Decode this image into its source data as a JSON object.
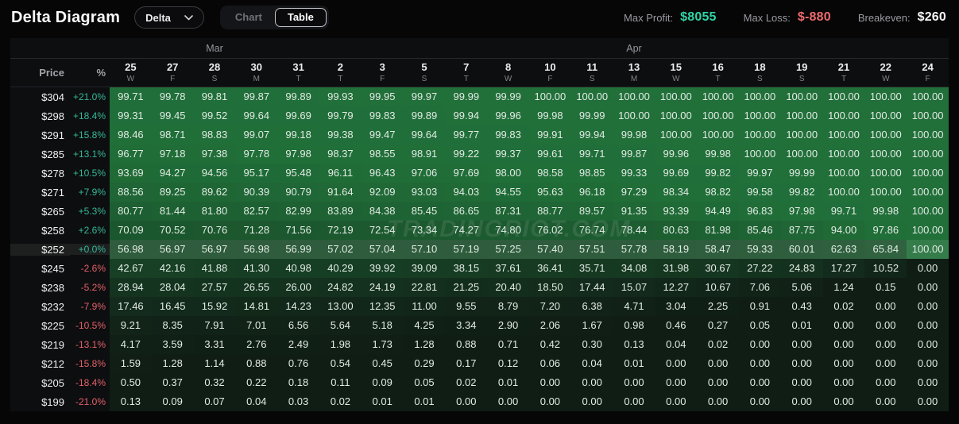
{
  "header": {
    "title": "Delta Diagram",
    "dropdown_value": "Delta",
    "tabs": [
      {
        "label": "Chart",
        "active": false
      },
      {
        "label": "Table",
        "active": true
      }
    ]
  },
  "stats": {
    "max_profit_label": "Max Profit:",
    "max_profit_value": "$8055",
    "max_loss_label": "Max Loss:",
    "max_loss_value": "$-880",
    "breakeven_label": "Breakeven:",
    "breakeven_value": "$260",
    "profit_color": "#2fd3a5",
    "loss_color": "#ee6a6c"
  },
  "watermark": "TRADINGRIOT.COM",
  "colors": {
    "cell_green_base": "rgb(44,164,80)",
    "positive_pct": "#35b899",
    "negative_pct": "#e2606b"
  },
  "table": {
    "price_header": "Price",
    "pct_header": "%",
    "months": [
      {
        "label": "Mar",
        "span": 5
      },
      {
        "label": "Apr",
        "span": 15
      }
    ],
    "columns": [
      {
        "day": "25",
        "dow": "W"
      },
      {
        "day": "27",
        "dow": "F"
      },
      {
        "day": "28",
        "dow": "S"
      },
      {
        "day": "30",
        "dow": "M"
      },
      {
        "day": "31",
        "dow": "T"
      },
      {
        "day": "2",
        "dow": "T"
      },
      {
        "day": "3",
        "dow": "F"
      },
      {
        "day": "5",
        "dow": "S"
      },
      {
        "day": "7",
        "dow": "T"
      },
      {
        "day": "8",
        "dow": "W"
      },
      {
        "day": "10",
        "dow": "F"
      },
      {
        "day": "11",
        "dow": "S"
      },
      {
        "day": "13",
        "dow": "M"
      },
      {
        "day": "15",
        "dow": "W"
      },
      {
        "day": "16",
        "dow": "T"
      },
      {
        "day": "18",
        "dow": "S"
      },
      {
        "day": "19",
        "dow": "S"
      },
      {
        "day": "21",
        "dow": "T"
      },
      {
        "day": "22",
        "dow": "W"
      },
      {
        "day": "24",
        "dow": "F"
      }
    ],
    "highlight_row_index": 8,
    "rows": [
      {
        "price": "$304",
        "pct": "+21.0%",
        "dir": "pos",
        "values": [
          "99.71",
          "99.78",
          "99.81",
          "99.87",
          "99.89",
          "99.93",
          "99.95",
          "99.97",
          "99.99",
          "99.99",
          "100.00",
          "100.00",
          "100.00",
          "100.00",
          "100.00",
          "100.00",
          "100.00",
          "100.00",
          "100.00",
          "100.00"
        ]
      },
      {
        "price": "$298",
        "pct": "+18.4%",
        "dir": "pos",
        "values": [
          "99.31",
          "99.45",
          "99.52",
          "99.64",
          "99.69",
          "99.79",
          "99.83",
          "99.89",
          "99.94",
          "99.96",
          "99.98",
          "99.99",
          "100.00",
          "100.00",
          "100.00",
          "100.00",
          "100.00",
          "100.00",
          "100.00",
          "100.00"
        ]
      },
      {
        "price": "$291",
        "pct": "+15.8%",
        "dir": "pos",
        "values": [
          "98.46",
          "98.71",
          "98.83",
          "99.07",
          "99.18",
          "99.38",
          "99.47",
          "99.64",
          "99.77",
          "99.83",
          "99.91",
          "99.94",
          "99.98",
          "100.00",
          "100.00",
          "100.00",
          "100.00",
          "100.00",
          "100.00",
          "100.00"
        ]
      },
      {
        "price": "$285",
        "pct": "+13.1%",
        "dir": "pos",
        "values": [
          "96.77",
          "97.18",
          "97.38",
          "97.78",
          "97.98",
          "98.37",
          "98.55",
          "98.91",
          "99.22",
          "99.37",
          "99.61",
          "99.71",
          "99.87",
          "99.96",
          "99.98",
          "100.00",
          "100.00",
          "100.00",
          "100.00",
          "100.00"
        ]
      },
      {
        "price": "$278",
        "pct": "+10.5%",
        "dir": "pos",
        "values": [
          "93.69",
          "94.27",
          "94.56",
          "95.17",
          "95.48",
          "96.11",
          "96.43",
          "97.06",
          "97.69",
          "98.00",
          "98.58",
          "98.85",
          "99.33",
          "99.69",
          "99.82",
          "99.97",
          "99.99",
          "100.00",
          "100.00",
          "100.00"
        ]
      },
      {
        "price": "$271",
        "pct": "+7.9%",
        "dir": "pos",
        "values": [
          "88.56",
          "89.25",
          "89.62",
          "90.39",
          "90.79",
          "91.64",
          "92.09",
          "93.03",
          "94.03",
          "94.55",
          "95.63",
          "96.18",
          "97.29",
          "98.34",
          "98.82",
          "99.58",
          "99.82",
          "100.00",
          "100.00",
          "100.00"
        ]
      },
      {
        "price": "$265",
        "pct": "+5.3%",
        "dir": "pos",
        "values": [
          "80.77",
          "81.44",
          "81.80",
          "82.57",
          "82.99",
          "83.89",
          "84.38",
          "85.45",
          "86.65",
          "87.31",
          "88.77",
          "89.57",
          "91.35",
          "93.39",
          "94.49",
          "96.83",
          "97.98",
          "99.71",
          "99.98",
          "100.00"
        ]
      },
      {
        "price": "$258",
        "pct": "+2.6%",
        "dir": "pos",
        "values": [
          "70.09",
          "70.52",
          "70.76",
          "71.28",
          "71.56",
          "72.19",
          "72.54",
          "73.34",
          "74.27",
          "74.80",
          "76.02",
          "76.74",
          "78.44",
          "80.63",
          "81.98",
          "85.46",
          "87.75",
          "94.00",
          "97.86",
          "100.00"
        ]
      },
      {
        "price": "$252",
        "pct": "+0.0%",
        "dir": "pos",
        "values": [
          "56.98",
          "56.97",
          "56.97",
          "56.98",
          "56.99",
          "57.02",
          "57.04",
          "57.10",
          "57.19",
          "57.25",
          "57.40",
          "57.51",
          "57.78",
          "58.19",
          "58.47",
          "59.33",
          "60.01",
          "62.63",
          "65.84",
          "100.00"
        ]
      },
      {
        "price": "$245",
        "pct": "-2.6%",
        "dir": "neg",
        "values": [
          "42.67",
          "42.16",
          "41.88",
          "41.30",
          "40.98",
          "40.29",
          "39.92",
          "39.09",
          "38.15",
          "37.61",
          "36.41",
          "35.71",
          "34.08",
          "31.98",
          "30.67",
          "27.22",
          "24.83",
          "17.27",
          "10.52",
          "0.00"
        ]
      },
      {
        "price": "$238",
        "pct": "-5.2%",
        "dir": "neg",
        "values": [
          "28.94",
          "28.04",
          "27.57",
          "26.55",
          "26.00",
          "24.82",
          "24.19",
          "22.81",
          "21.25",
          "20.40",
          "18.50",
          "17.44",
          "15.07",
          "12.27",
          "10.67",
          "7.06",
          "5.06",
          "1.24",
          "0.15",
          "0.00"
        ]
      },
      {
        "price": "$232",
        "pct": "-7.9%",
        "dir": "neg",
        "values": [
          "17.46",
          "16.45",
          "15.92",
          "14.81",
          "14.23",
          "13.00",
          "12.35",
          "11.00",
          "9.55",
          "8.79",
          "7.20",
          "6.38",
          "4.71",
          "3.04",
          "2.25",
          "0.91",
          "0.43",
          "0.02",
          "0.00",
          "0.00"
        ]
      },
      {
        "price": "$225",
        "pct": "-10.5%",
        "dir": "neg",
        "values": [
          "9.21",
          "8.35",
          "7.91",
          "7.01",
          "6.56",
          "5.64",
          "5.18",
          "4.25",
          "3.34",
          "2.90",
          "2.06",
          "1.67",
          "0.98",
          "0.46",
          "0.27",
          "0.05",
          "0.01",
          "0.00",
          "0.00",
          "0.00"
        ]
      },
      {
        "price": "$219",
        "pct": "-13.1%",
        "dir": "neg",
        "values": [
          "4.17",
          "3.59",
          "3.31",
          "2.76",
          "2.49",
          "1.98",
          "1.73",
          "1.28",
          "0.88",
          "0.71",
          "0.42",
          "0.30",
          "0.13",
          "0.04",
          "0.02",
          "0.00",
          "0.00",
          "0.00",
          "0.00",
          "0.00"
        ]
      },
      {
        "price": "$212",
        "pct": "-15.8%",
        "dir": "neg",
        "values": [
          "1.59",
          "1.28",
          "1.14",
          "0.88",
          "0.76",
          "0.54",
          "0.45",
          "0.29",
          "0.17",
          "0.12",
          "0.06",
          "0.04",
          "0.01",
          "0.00",
          "0.00",
          "0.00",
          "0.00",
          "0.00",
          "0.00",
          "0.00"
        ]
      },
      {
        "price": "$205",
        "pct": "-18.4%",
        "dir": "neg",
        "values": [
          "0.50",
          "0.37",
          "0.32",
          "0.22",
          "0.18",
          "0.11",
          "0.09",
          "0.05",
          "0.02",
          "0.01",
          "0.00",
          "0.00",
          "0.00",
          "0.00",
          "0.00",
          "0.00",
          "0.00",
          "0.00",
          "0.00",
          "0.00"
        ]
      },
      {
        "price": "$199",
        "pct": "-21.0%",
        "dir": "neg",
        "values": [
          "0.13",
          "0.09",
          "0.07",
          "0.04",
          "0.03",
          "0.02",
          "0.01",
          "0.01",
          "0.00",
          "0.00",
          "0.00",
          "0.00",
          "0.00",
          "0.00",
          "0.00",
          "0.00",
          "0.00",
          "0.00",
          "0.00",
          "0.00"
        ]
      }
    ]
  }
}
